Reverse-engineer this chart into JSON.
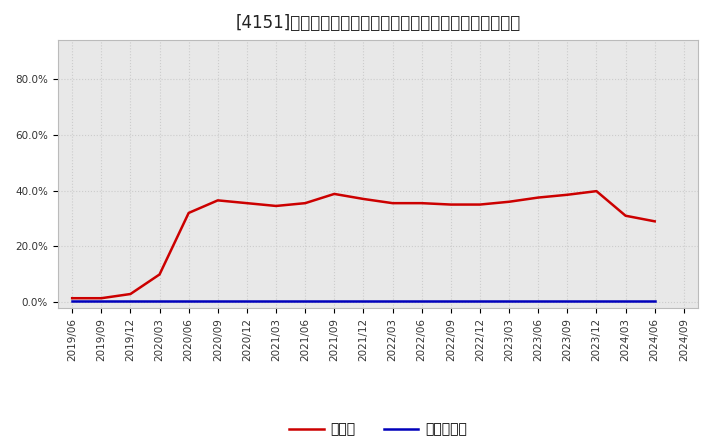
{
  "title": "[4151]　現須金、有利子負債の総資産に対する比率の推移",
  "cash_dates": [
    "2019/06",
    "2019/09",
    "2019/12",
    "2020/03",
    "2020/06",
    "2020/09",
    "2020/12",
    "2021/03",
    "2021/06",
    "2021/09",
    "2021/12",
    "2022/03",
    "2022/06",
    "2022/09",
    "2022/12",
    "2023/03",
    "2023/06",
    "2023/09",
    "2023/12",
    "2024/03",
    "2024/06"
  ],
  "cash_values": [
    1.5,
    1.5,
    3.0,
    10.0,
    32.0,
    36.5,
    35.5,
    34.5,
    35.5,
    38.8,
    37.0,
    35.5,
    35.5,
    35.0,
    35.0,
    36.0,
    37.5,
    38.5,
    39.8,
    31.0,
    29.0
  ],
  "debt_values": [
    0.5,
    0.5,
    0.5,
    0.5,
    0.5,
    0.5,
    0.5,
    0.5,
    0.5,
    0.5,
    0.5,
    0.5,
    0.5,
    0.5,
    0.5,
    0.5,
    0.5,
    0.5,
    0.5,
    0.5,
    0.5
  ],
  "cash_color": "#cc0000",
  "debt_color": "#0000bb",
  "cash_label": "現須金",
  "debt_label": "有利子負債",
  "yticks": [
    0.0,
    20.0,
    40.0,
    60.0,
    80.0
  ],
  "ytick_labels": [
    "0.0%",
    "20.0%",
    "40.0%",
    "60.0%",
    "80.0%"
  ],
  "ylim": [
    -2,
    94
  ],
  "background_color": "#ffffff",
  "plot_bg_color": "#e8e8e8",
  "grid_color": "#cccccc",
  "title_fontsize": 12,
  "legend_fontsize": 10,
  "tick_fontsize": 7.5,
  "x_tick_labels": [
    "2019/06",
    "2019/09",
    "2019/12",
    "2020/03",
    "2020/06",
    "2020/09",
    "2020/12",
    "2021/03",
    "2021/06",
    "2021/09",
    "2021/12",
    "2022/03",
    "2022/06",
    "2022/09",
    "2022/12",
    "2023/03",
    "2023/06",
    "2023/09",
    "2023/12",
    "2024/03",
    "2024/06",
    "2024/09"
  ]
}
